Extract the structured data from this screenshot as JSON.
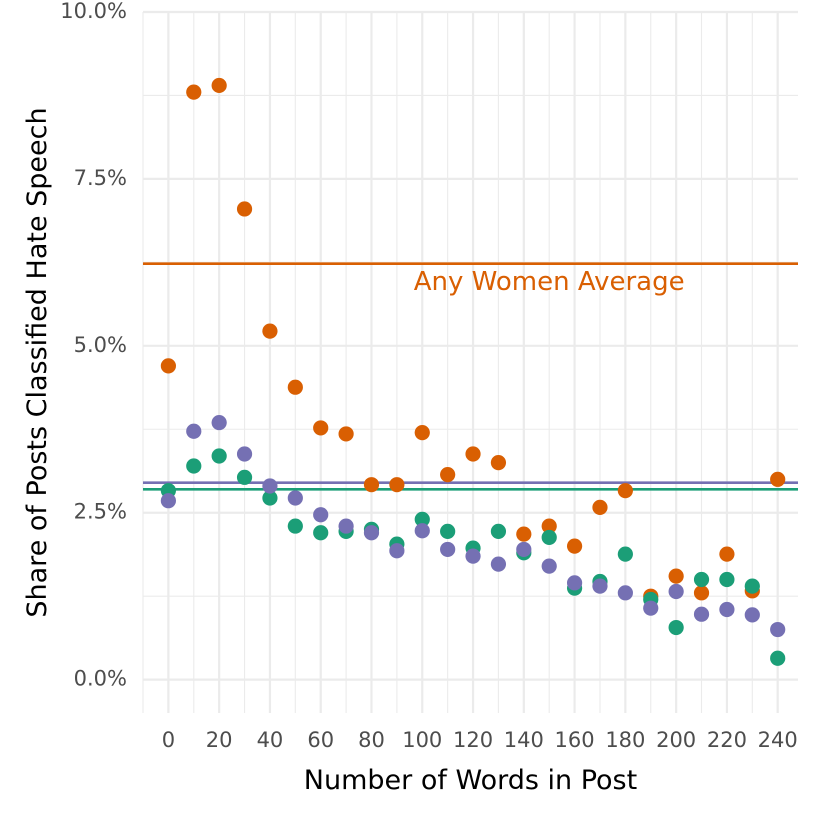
{
  "chart_data": {
    "type": "scatter",
    "title": "",
    "xlabel": "Number of Words in Post",
    "ylabel": "Share of Posts Classified Hate Speech",
    "xlim": [
      -10,
      248
    ],
    "ylim": [
      -0.5,
      10.0
    ],
    "x_ticks": [
      0,
      20,
      40,
      60,
      80,
      100,
      120,
      140,
      160,
      180,
      200,
      220,
      240
    ],
    "x_tick_labels": [
      "0",
      "20",
      "40",
      "60",
      "80",
      "100",
      "120",
      "140",
      "160",
      "180",
      "200",
      "220",
      "240"
    ],
    "y_ticks": [
      0,
      2.5,
      5,
      7.5,
      10
    ],
    "y_tick_labels": [
      "0.0%",
      "2.5%",
      "5.0%",
      "7.5%",
      "10.0%"
    ],
    "grid": true,
    "legend": "none",
    "x": [
      0,
      10,
      20,
      30,
      40,
      50,
      60,
      70,
      80,
      90,
      100,
      110,
      120,
      130,
      140,
      150,
      160,
      170,
      180,
      190,
      200,
      210,
      220,
      230,
      240
    ],
    "series": [
      {
        "color": "#d95f02",
        "values": [
          4.7,
          8.8,
          8.9,
          7.05,
          5.22,
          4.38,
          3.77,
          3.68,
          2.92,
          2.92,
          3.7,
          3.07,
          3.38,
          3.25,
          2.18,
          2.3,
          2.0,
          2.58,
          2.83,
          1.25,
          1.55,
          1.3,
          1.88,
          1.33,
          3.0
        ],
        "average": 6.23
      },
      {
        "color": "#1b9e77",
        "values": [
          2.83,
          3.2,
          3.35,
          3.03,
          2.72,
          2.3,
          2.2,
          2.22,
          2.25,
          2.03,
          2.4,
          2.22,
          1.97,
          2.22,
          1.9,
          2.13,
          1.37,
          1.47,
          1.88,
          1.2,
          0.78,
          1.5,
          1.5,
          1.4,
          0.32
        ],
        "average": 2.85
      },
      {
        "color": "#7570b3",
        "values": [
          2.68,
          3.72,
          3.85,
          3.38,
          2.9,
          2.72,
          2.47,
          2.3,
          2.2,
          1.93,
          2.23,
          1.95,
          1.85,
          1.73,
          1.95,
          1.7,
          1.45,
          1.4,
          1.3,
          1.07,
          1.32,
          0.98,
          1.05,
          0.97,
          0.75
        ],
        "average": 2.95
      }
    ],
    "annotations": [
      {
        "text": "Any Women Average",
        "x": 150,
        "y": 5.95,
        "color": "#d95f02"
      }
    ]
  }
}
